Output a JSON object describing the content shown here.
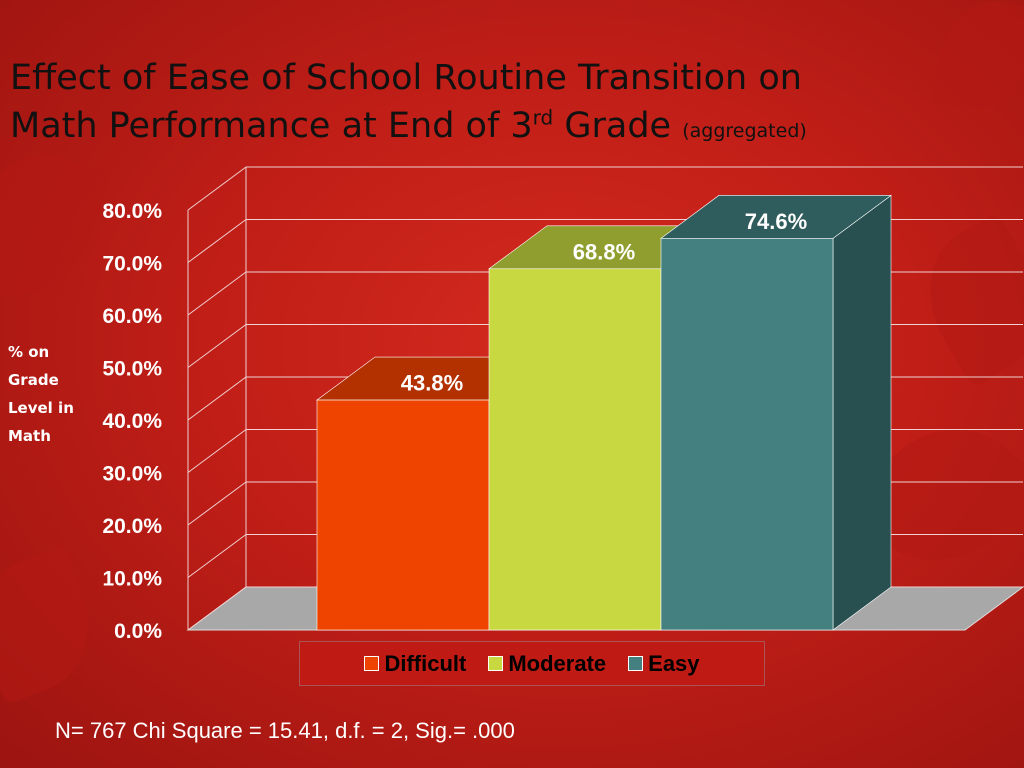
{
  "title": {
    "line1": "Effect of Ease of School Routine Transition on",
    "line2_pre": "Math Performance  at End of 3",
    "line2_sup": "rd",
    "line2_post": " Grade ",
    "note": "(aggregated)"
  },
  "chart_data": {
    "type": "bar",
    "three_d": true,
    "categories": [
      "Difficult",
      "Moderate",
      "Easy"
    ],
    "values": [
      43.8,
      68.8,
      74.6
    ],
    "value_labels": [
      "43.8%",
      "68.8%",
      "74.6%"
    ],
    "ylabel": "% on Grade Level in Math",
    "ylim": [
      0,
      80
    ],
    "yticks": [
      "0.0%",
      "10.0%",
      "20.0%",
      "30.0%",
      "40.0%",
      "50.0%",
      "60.0%",
      "70.0%",
      "80.0%"
    ],
    "grid": true,
    "legend_position": "bottom",
    "colors": {
      "Difficult": "#ee4400",
      "Moderate": "#c8d840",
      "Easy": "#458080"
    }
  },
  "legend": [
    {
      "label": "Difficult",
      "color": "#ee4400"
    },
    {
      "label": "Moderate",
      "color": "#c8d840"
    },
    {
      "label": "Easy",
      "color": "#458080"
    }
  ],
  "footnote": "N= 767  Chi Square = 15.41, d.f. = 2, Sig.= .000"
}
